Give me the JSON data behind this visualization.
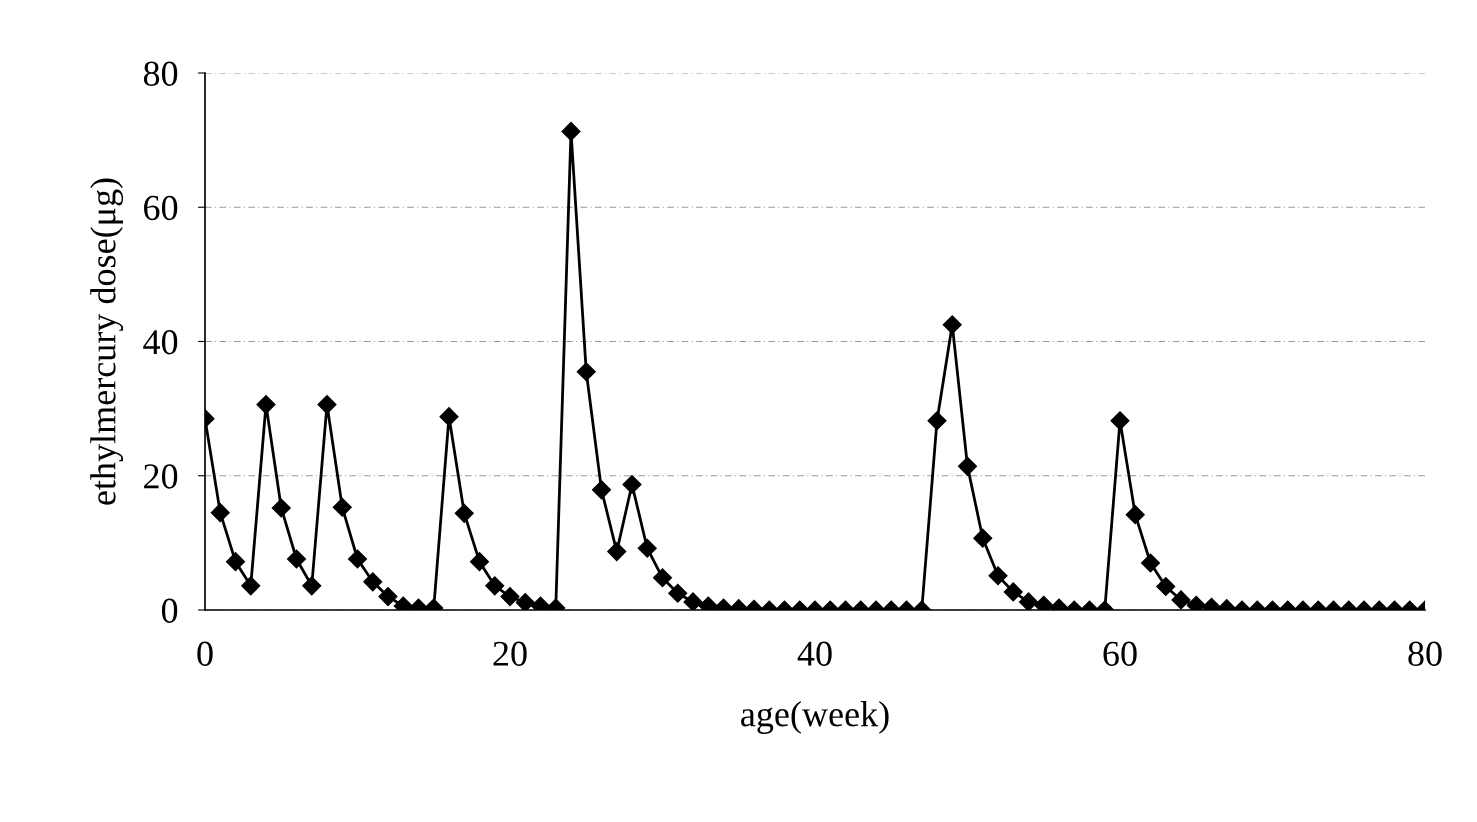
{
  "chart_data": {
    "type": "line",
    "xlabel": "age(week)",
    "ylabel": "ethylmercury dose(μg)",
    "x": [
      0,
      1,
      2,
      3,
      4,
      5,
      6,
      7,
      8,
      9,
      10,
      11,
      12,
      13,
      14,
      15,
      16,
      17,
      18,
      19,
      20,
      21,
      22,
      23,
      24,
      25,
      26,
      27,
      28,
      29,
      30,
      31,
      32,
      33,
      34,
      35,
      36,
      37,
      38,
      39,
      40,
      41,
      42,
      43,
      44,
      45,
      46,
      47,
      48,
      49,
      50,
      51,
      52,
      53,
      54,
      55,
      56,
      57,
      58,
      59,
      60,
      61,
      62,
      63,
      64,
      65,
      66,
      67,
      68,
      69,
      70,
      71,
      72,
      73,
      74,
      75,
      76,
      77,
      78,
      79,
      80
    ],
    "series": [
      {
        "color": "#000000",
        "values": [
          28.5,
          14.5,
          7.2,
          3.6,
          30.6,
          15.2,
          7.6,
          3.6,
          30.6,
          15.3,
          7.6,
          4.2,
          2.0,
          0.6,
          0.3,
          0.3,
          28.8,
          14.4,
          7.2,
          3.6,
          2.0,
          1.1,
          0.6,
          0.3,
          71.3,
          35.5,
          17.9,
          8.7,
          18.7,
          9.2,
          4.8,
          2.5,
          1.2,
          0.6,
          0.3,
          0.2,
          0.1,
          0,
          0,
          0,
          0,
          0,
          0,
          0,
          0,
          0,
          0,
          0,
          28.2,
          42.5,
          21.4,
          10.7,
          5.1,
          2.7,
          1.2,
          0.7,
          0.3,
          0,
          0,
          0,
          28.2,
          14.2,
          7.0,
          3.5,
          1.5,
          0.7,
          0.4,
          0.2,
          0,
          0,
          0,
          0,
          0,
          0,
          0,
          0,
          0,
          0,
          0,
          0,
          0
        ]
      }
    ],
    "xlim": [
      0,
      80
    ],
    "xticks": [
      0,
      20,
      40,
      60,
      80
    ],
    "ylim": [
      0,
      80
    ],
    "yticks": [
      0,
      20,
      40,
      60,
      80
    ],
    "grid": "y",
    "marker": "diamond",
    "line_style": "solid"
  }
}
